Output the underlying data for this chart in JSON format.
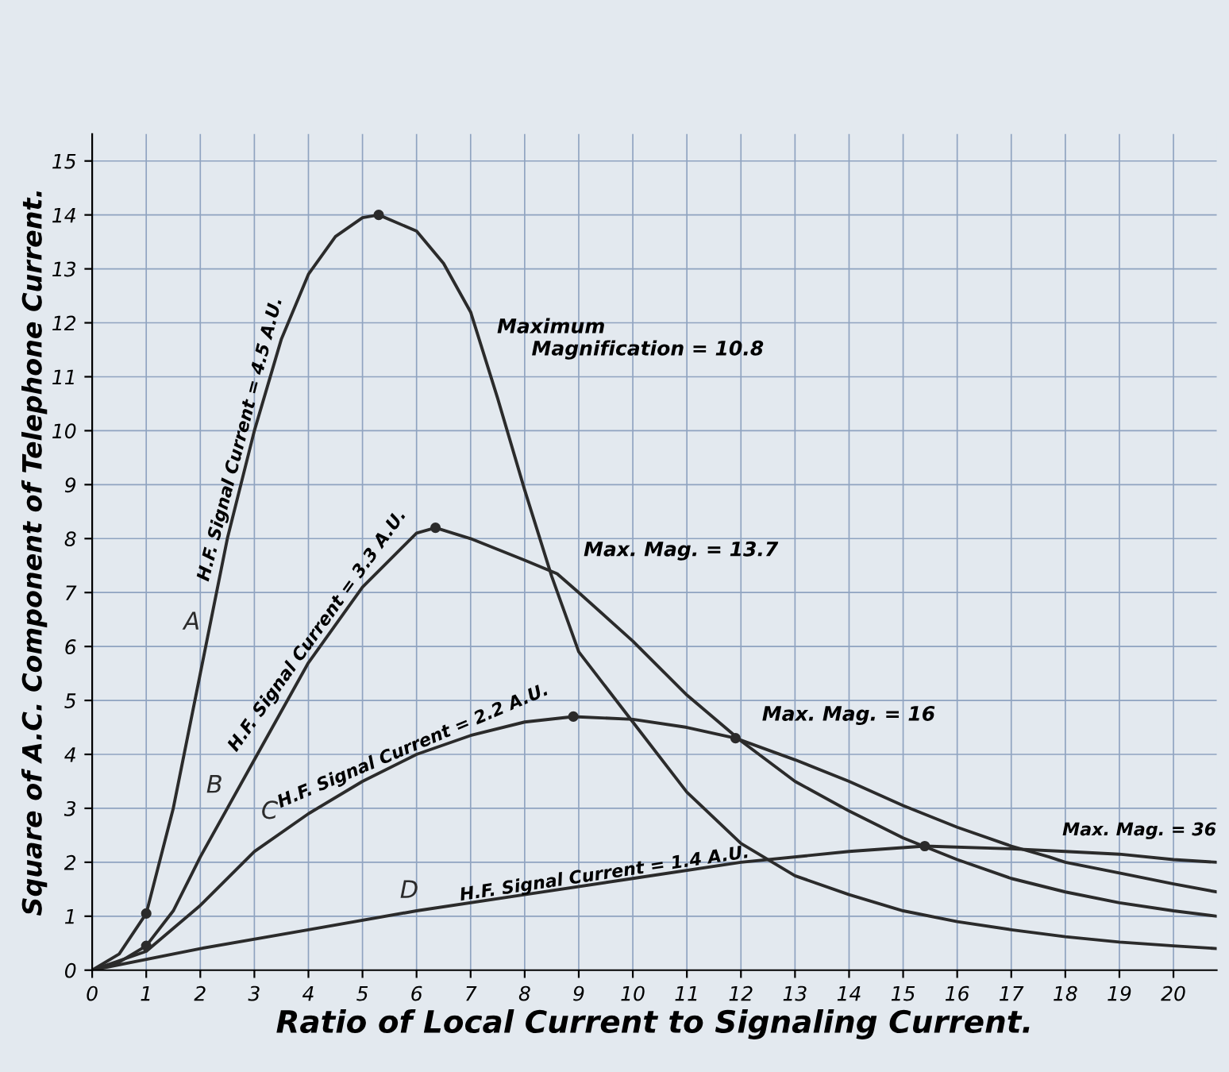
{
  "chart_data": {
    "type": "line",
    "xlabel": "Ratio of Local Current to Signaling Current.",
    "ylabel": "Square of A.C. Component of Telephone Current.",
    "xlim": [
      0,
      20.8
    ],
    "ylim": [
      0,
      15.5
    ],
    "xticks": [
      0,
      1,
      2,
      3,
      4,
      5,
      6,
      7,
      8,
      9,
      10,
      11,
      12,
      13,
      14,
      15,
      16,
      17,
      18,
      19,
      20
    ],
    "yticks": [
      0,
      1,
      2,
      3,
      4,
      5,
      6,
      7,
      8,
      9,
      10,
      11,
      12,
      13,
      14,
      15
    ],
    "grid": true,
    "legend": false,
    "marker": "none",
    "line_style": "solid",
    "series": [
      {
        "name": "A",
        "color": "#2b2b2b",
        "x": [
          0,
          0.5,
          1,
          1.5,
          2,
          2.5,
          3,
          3.5,
          4,
          4.5,
          5,
          5.3,
          6,
          6.5,
          7,
          7.5,
          8,
          8.5,
          9,
          10,
          11,
          12,
          13,
          14,
          15,
          16,
          17,
          18,
          19,
          20,
          20.8
        ],
        "values": [
          0,
          0.3,
          1.05,
          3,
          5.5,
          8,
          10,
          11.7,
          12.9,
          13.6,
          13.95,
          14,
          13.7,
          13.1,
          12.2,
          10.6,
          8.9,
          7.3,
          5.9,
          4.6,
          3.3,
          2.35,
          1.75,
          1.4,
          1.1,
          0.9,
          0.75,
          0.62,
          0.52,
          0.45,
          0.4
        ]
      },
      {
        "name": "B",
        "color": "#2b2b2b",
        "x": [
          0,
          0.5,
          1,
          1.5,
          2,
          3,
          4,
          5,
          6,
          6.35,
          7,
          8,
          8.6,
          9,
          10,
          11,
          12,
          13,
          14,
          15,
          16,
          17,
          18,
          19,
          20,
          20.8
        ],
        "values": [
          0,
          0.15,
          0.45,
          1.1,
          2.1,
          3.9,
          5.7,
          7.1,
          8.1,
          8.2,
          8.0,
          7.6,
          7.35,
          7.0,
          6.1,
          5.1,
          4.25,
          3.5,
          2.95,
          2.45,
          2.05,
          1.7,
          1.45,
          1.25,
          1.1,
          1.0
        ]
      },
      {
        "name": "C",
        "color": "#2b2b2b",
        "x": [
          0,
          1,
          2,
          3,
          4,
          5,
          6,
          7,
          8,
          8.9,
          10,
          11,
          11.9,
          13,
          14,
          15,
          16,
          17,
          17.7,
          18,
          19,
          20,
          20.8
        ],
        "values": [
          0,
          0.35,
          1.2,
          2.2,
          2.9,
          3.5,
          4.0,
          4.35,
          4.6,
          4.7,
          4.65,
          4.5,
          4.3,
          3.9,
          3.5,
          3.05,
          2.65,
          2.3,
          2.1,
          2.0,
          1.8,
          1.6,
          1.45
        ]
      },
      {
        "name": "D",
        "color": "#2b2b2b",
        "x": [
          0,
          2,
          4,
          6,
          8,
          10,
          12,
          14,
          15.4,
          17,
          18,
          19,
          20,
          20.8
        ],
        "values": [
          0,
          0.4,
          0.75,
          1.1,
          1.4,
          1.7,
          2.0,
          2.2,
          2.3,
          2.25,
          2.2,
          2.15,
          2.05,
          2.0
        ]
      },
      {
        "type": "scatter",
        "marker": "circle",
        "color": "#2b2b2b",
        "x": [
          1,
          5.3,
          1,
          6.35,
          8.9,
          11.9,
          15.4
        ],
        "values": [
          1.05,
          14,
          0.45,
          8.2,
          4.7,
          4.3,
          2.3
        ]
      }
    ],
    "annotations": [
      {
        "text": "H.F. Signal Current = 4.5 A.U.",
        "x": 2.9,
        "y": 9.8
      },
      {
        "text": "H.F. Signal Current = 3.3 A.U.",
        "x": 4.3,
        "y": 6.2
      },
      {
        "text": "H.F. Signal Current = 2.2 A.U.",
        "x": 6.0,
        "y": 4.0
      },
      {
        "text": "H.F. Signal Current = 1.4 A.U.",
        "x": 9.5,
        "y": 1.62
      },
      "Maximum\n     Magnification = 10.8",
      {
        "text": "Max. Mag. = 13.7",
        "x": 8.6,
        "y": 7.35
      },
      {
        "text": "Max. Mag. = 16",
        "x": 11.9,
        "y": 4.3
      },
      {
        "text": "Max. Mag. = 36",
        "x": 17.7,
        "y": 2.1
      }
    ]
  }
}
